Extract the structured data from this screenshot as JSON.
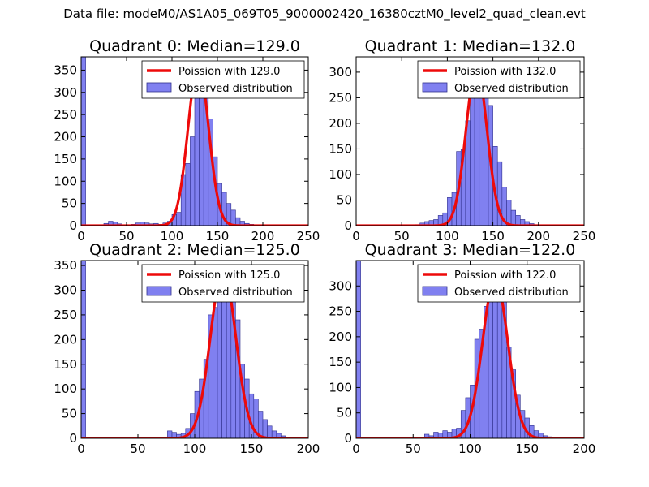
{
  "suptitle": "Data file: modeM0/AS1A05_069T05_9000002420_16380cztM0_level2_quad_clean.evt",
  "colors": {
    "bar_fill": "#8080f0",
    "bar_edge": "#2f2f8c",
    "curve": "#ee0a0a",
    "curve_alpha_overlay": "#f08080"
  },
  "chart_data": [
    {
      "type": "bar",
      "title": "Quadrant 0: Median=129.0",
      "xlim": [
        0,
        250
      ],
      "ylim": [
        0,
        380
      ],
      "xticks": [
        0,
        50,
        100,
        150,
        200,
        250
      ],
      "yticks": [
        0,
        50,
        100,
        150,
        200,
        250,
        300,
        350
      ],
      "legend": {
        "position": "top-right",
        "entries": [
          "Poission with 129.0",
          "Observed distribution"
        ]
      },
      "bin_width": 5,
      "bins": [
        [
          0,
          380
        ],
        [
          20,
          2
        ],
        [
          25,
          5
        ],
        [
          30,
          10
        ],
        [
          35,
          8
        ],
        [
          40,
          4
        ],
        [
          45,
          2
        ],
        [
          55,
          3
        ],
        [
          60,
          6
        ],
        [
          65,
          8
        ],
        [
          70,
          6
        ],
        [
          75,
          4
        ],
        [
          80,
          5
        ],
        [
          85,
          3
        ],
        [
          90,
          6
        ],
        [
          95,
          10
        ],
        [
          100,
          25
        ],
        [
          105,
          30
        ],
        [
          110,
          115
        ],
        [
          115,
          140
        ],
        [
          120,
          200
        ],
        [
          125,
          300
        ],
        [
          130,
          350
        ],
        [
          135,
          330
        ],
        [
          140,
          240
        ],
        [
          145,
          155
        ],
        [
          150,
          95
        ],
        [
          155,
          75
        ],
        [
          160,
          50
        ],
        [
          165,
          35
        ],
        [
          170,
          18
        ],
        [
          175,
          10
        ],
        [
          180,
          5
        ],
        [
          185,
          3
        ],
        [
          190,
          2
        ],
        [
          195,
          2
        ]
      ],
      "poisson_mean": 129.0,
      "poisson_peak": 362
    },
    {
      "type": "bar",
      "title": "Quadrant 1: Median=132.0",
      "xlim": [
        0,
        250
      ],
      "ylim": [
        0,
        330
      ],
      "xticks": [
        0,
        50,
        100,
        150,
        200,
        250
      ],
      "yticks": [
        0,
        50,
        100,
        150,
        200,
        250,
        300
      ],
      "legend": {
        "position": "top-right",
        "entries": [
          "Poission with 132.0",
          "Observed distribution"
        ]
      },
      "bin_width": 5,
      "bins": [
        [
          65,
          2
        ],
        [
          70,
          5
        ],
        [
          75,
          8
        ],
        [
          80,
          10
        ],
        [
          85,
          12
        ],
        [
          90,
          20
        ],
        [
          95,
          25
        ],
        [
          100,
          55
        ],
        [
          105,
          65
        ],
        [
          110,
          145
        ],
        [
          115,
          150
        ],
        [
          120,
          205
        ],
        [
          125,
          255
        ],
        [
          130,
          300
        ],
        [
          135,
          305
        ],
        [
          140,
          260
        ],
        [
          145,
          235
        ],
        [
          150,
          155
        ],
        [
          155,
          125
        ],
        [
          160,
          75
        ],
        [
          165,
          50
        ],
        [
          170,
          30
        ],
        [
          175,
          20
        ],
        [
          180,
          12
        ],
        [
          185,
          8
        ],
        [
          190,
          4
        ],
        [
          195,
          2
        ],
        [
          200,
          1
        ]
      ],
      "poisson_mean": 132.0,
      "poisson_peak": 310
    },
    {
      "type": "bar",
      "title": "Quadrant 2: Median=125.0",
      "xlim": [
        0,
        200
      ],
      "ylim": [
        0,
        360
      ],
      "xticks": [
        0,
        50,
        100,
        150,
        200
      ],
      "yticks": [
        0,
        50,
        100,
        150,
        200,
        250,
        300,
        350
      ],
      "legend": {
        "position": "top-right",
        "entries": [
          "Poission with 125.0",
          "Observed distribution"
        ]
      },
      "bin_width": 4,
      "bins": [
        [
          0,
          360
        ],
        [
          76,
          15
        ],
        [
          80,
          12
        ],
        [
          84,
          8
        ],
        [
          88,
          10
        ],
        [
          92,
          20
        ],
        [
          96,
          50
        ],
        [
          100,
          95
        ],
        [
          104,
          120
        ],
        [
          108,
          160
        ],
        [
          112,
          250
        ],
        [
          116,
          265
        ],
        [
          120,
          320
        ],
        [
          124,
          340
        ],
        [
          128,
          345
        ],
        [
          132,
          310
        ],
        [
          136,
          240
        ],
        [
          140,
          150
        ],
        [
          144,
          120
        ],
        [
          148,
          90
        ],
        [
          152,
          80
        ],
        [
          156,
          55
        ],
        [
          160,
          38
        ],
        [
          164,
          25
        ],
        [
          168,
          15
        ],
        [
          172,
          10
        ],
        [
          176,
          5
        ],
        [
          180,
          2
        ]
      ],
      "poisson_mean": 125.0,
      "poisson_peak": 340
    },
    {
      "type": "bar",
      "title": "Quadrant 3: Median=122.0",
      "xlim": [
        0,
        200
      ],
      "ylim": [
        0,
        350
      ],
      "xticks": [
        0,
        50,
        100,
        150,
        200
      ],
      "yticks": [
        0,
        50,
        100,
        150,
        200,
        250,
        300
      ],
      "legend": {
        "position": "top-right",
        "entries": [
          "Poission with 122.0",
          "Observed distribution"
        ]
      },
      "bin_width": 4,
      "bins": [
        [
          0,
          355
        ],
        [
          60,
          8
        ],
        [
          64,
          5
        ],
        [
          68,
          12
        ],
        [
          72,
          10
        ],
        [
          76,
          15
        ],
        [
          80,
          12
        ],
        [
          84,
          18
        ],
        [
          88,
          20
        ],
        [
          92,
          55
        ],
        [
          96,
          80
        ],
        [
          100,
          105
        ],
        [
          104,
          195
        ],
        [
          108,
          215
        ],
        [
          112,
          260
        ],
        [
          116,
          300
        ],
        [
          120,
          315
        ],
        [
          124,
          310
        ],
        [
          128,
          290
        ],
        [
          132,
          180
        ],
        [
          136,
          135
        ],
        [
          140,
          85
        ],
        [
          144,
          55
        ],
        [
          148,
          40
        ],
        [
          152,
          25
        ],
        [
          156,
          15
        ],
        [
          160,
          10
        ],
        [
          164,
          5
        ],
        [
          168,
          3
        ],
        [
          172,
          1
        ]
      ],
      "poisson_mean": 122.0,
      "poisson_peak": 315
    }
  ]
}
